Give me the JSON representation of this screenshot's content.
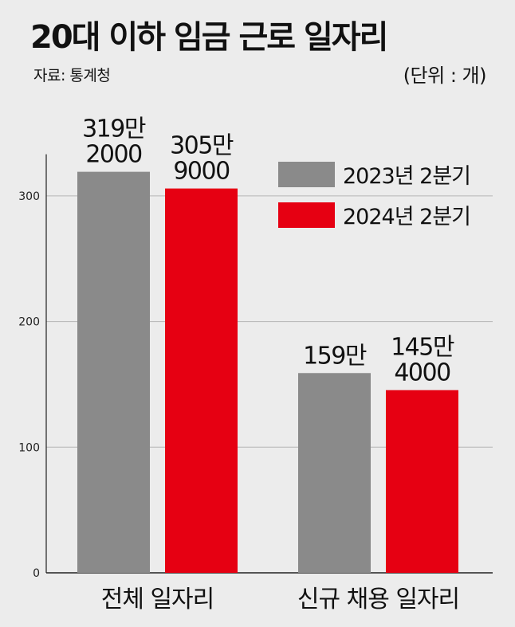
{
  "header": {
    "title": "20대 이하 임금 근로 일자리",
    "source": "자료: 통계청",
    "unit": "(단위 : 개)"
  },
  "colors": {
    "series_2023": "#8a8a8a",
    "series_2024": "#e60012",
    "gridline": "#b5b5b5",
    "axis": "#222222"
  },
  "chart_data": {
    "type": "bar",
    "categories": [
      "전체 일자리",
      "신규 채용 일자리"
    ],
    "y_unit": "만 개",
    "ylim": [
      0,
      330
    ],
    "yticks": [
      0,
      100,
      200,
      300
    ],
    "grid": true,
    "legend_position": "top-right",
    "series": [
      {
        "name": "2023년 2분기",
        "values": [
          319.2,
          159
        ],
        "labels": [
          [
            "319만",
            "2000"
          ],
          [
            "159만"
          ]
        ]
      },
      {
        "name": "2024년 2분기",
        "values": [
          305.9,
          145.4
        ],
        "labels": [
          [
            "305만",
            "9000"
          ],
          [
            "145만",
            "4000"
          ]
        ]
      }
    ]
  }
}
